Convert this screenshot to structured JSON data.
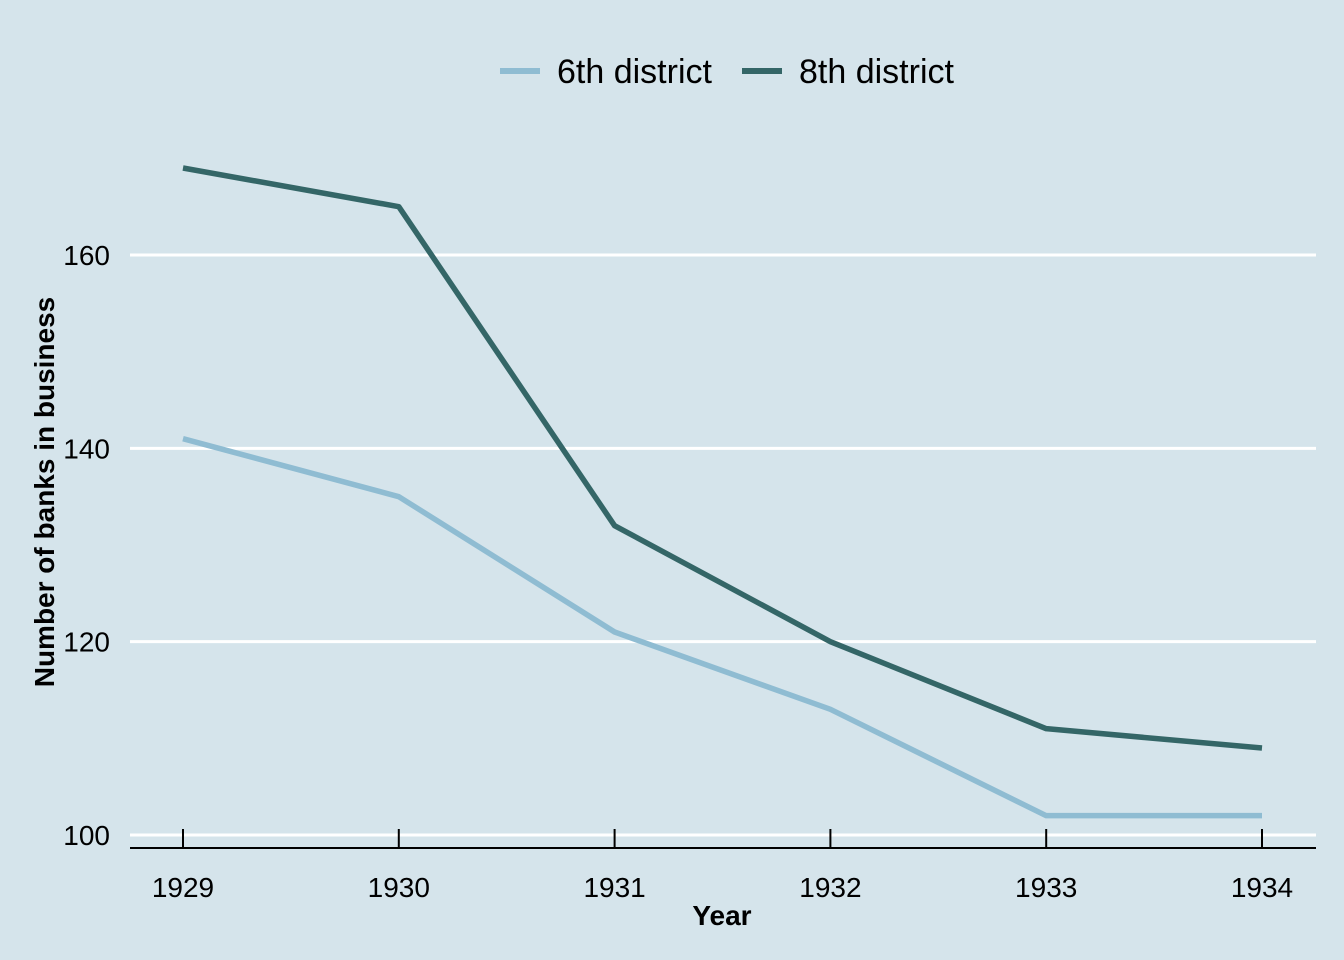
{
  "chart_data": {
    "type": "line",
    "xlabel": "Year",
    "ylabel": "Number of banks in business",
    "x": [
      1929,
      1930,
      1931,
      1932,
      1933,
      1934
    ],
    "x_tick_labels": [
      "1929",
      "1930",
      "1931",
      "1932",
      "1933",
      "1934"
    ],
    "y_ticks": [
      100,
      120,
      140,
      160
    ],
    "y_tick_labels": [
      "100",
      "120",
      "140",
      "160"
    ],
    "ylim": [
      99,
      176
    ],
    "grid": "horizontal",
    "legend_position": "top",
    "series": [
      {
        "name": "6th district",
        "color": "#8fbcd2",
        "values": [
          141,
          135,
          121,
          113,
          102,
          102
        ]
      },
      {
        "name": "8th district",
        "color": "#346667",
        "values": [
          169,
          165,
          132,
          120,
          111,
          109
        ]
      }
    ]
  }
}
